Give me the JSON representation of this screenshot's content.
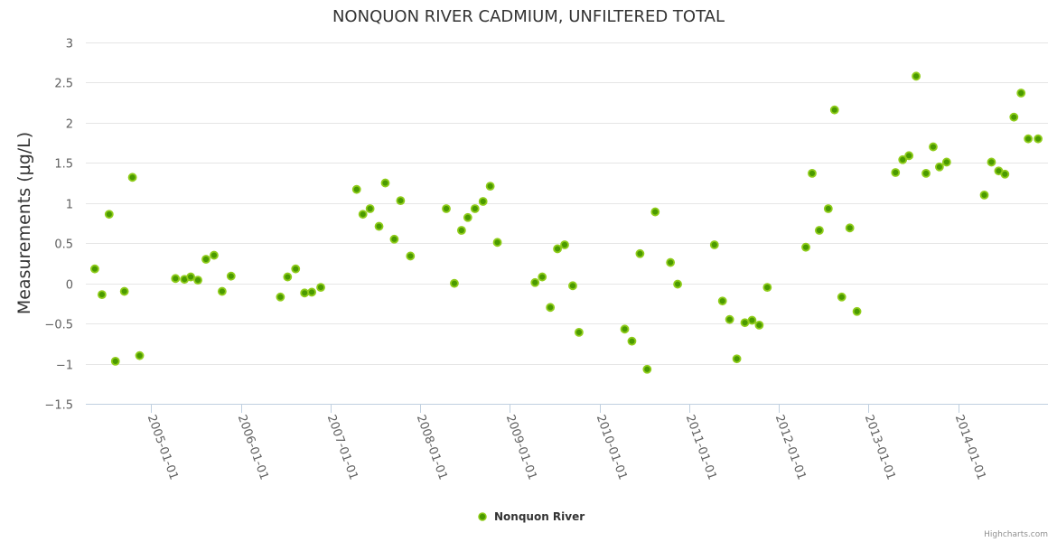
{
  "chart_data": {
    "type": "scatter",
    "title": "NONQUON RIVER CADMIUM, UNFILTERED TOTAL",
    "xlabel": "",
    "ylabel": "Measurements (µg/L)",
    "ylim": [
      -1.5,
      3
    ],
    "yticks": [
      3,
      2.5,
      2,
      1.5,
      1,
      0.5,
      0,
      -0.5,
      -1,
      -1.5
    ],
    "ytick_labels": [
      "3",
      "2.5",
      "2",
      "1.5",
      "1",
      "0.5",
      "0",
      "−0.5",
      "−1",
      "−1.5"
    ],
    "xlim": [
      2004.27,
      2015.0
    ],
    "x_units": "decimal year",
    "xticks": [
      2005,
      2006,
      2007,
      2008,
      2009,
      2010,
      2011,
      2012,
      2013,
      2014
    ],
    "xtick_labels": [
      "2005-01-01",
      "2006-01-01",
      "2007-01-01",
      "2008-01-01",
      "2009-01-01",
      "2010-01-01",
      "2011-01-01",
      "2012-01-01",
      "2013-01-01",
      "2014-01-01"
    ],
    "grid": true,
    "legend_position": "bottom-center",
    "credit": "Highcharts.com",
    "series": [
      {
        "name": "Nonquon River",
        "color": "#7cb700",
        "x": [
          2004.37,
          2004.45,
          2004.53,
          2004.6,
          2004.7,
          2004.79,
          2004.87,
          2005.27,
          2005.37,
          2005.44,
          2005.52,
          2005.61,
          2005.7,
          2005.79,
          2005.89,
          2006.44,
          2006.52,
          2006.61,
          2006.71,
          2006.79,
          2006.89,
          2007.29,
          2007.36,
          2007.44,
          2007.54,
          2007.61,
          2007.71,
          2007.78,
          2007.89,
          2008.29,
          2008.38,
          2008.46,
          2008.53,
          2008.61,
          2008.7,
          2008.78,
          2008.86,
          2009.28,
          2009.36,
          2009.45,
          2009.53,
          2009.61,
          2009.7,
          2009.77,
          2010.28,
          2010.36,
          2010.45,
          2010.53,
          2010.62,
          2010.79,
          2010.87,
          2011.28,
          2011.37,
          2011.45,
          2011.53,
          2011.62,
          2011.7,
          2011.78,
          2011.87,
          2012.3,
          2012.37,
          2012.45,
          2012.55,
          2012.62,
          2012.7,
          2012.79,
          2012.87,
          2013.3,
          2013.38,
          2013.45,
          2013.53,
          2013.64,
          2013.72,
          2013.79,
          2013.87,
          2014.29,
          2014.37,
          2014.45,
          2014.52,
          2014.62,
          2014.7,
          2014.78,
          2014.89
        ],
        "y": [
          0.18,
          -0.14,
          0.86,
          -0.97,
          -0.1,
          1.32,
          -0.9,
          0.06,
          0.05,
          0.08,
          0.04,
          0.3,
          0.35,
          -0.1,
          0.09,
          -0.17,
          0.08,
          0.18,
          -0.12,
          -0.11,
          -0.05,
          1.17,
          0.86,
          0.93,
          0.71,
          1.25,
          0.55,
          1.03,
          0.34,
          0.93,
          0.0,
          0.66,
          0.82,
          0.93,
          1.02,
          1.21,
          0.51,
          0.01,
          0.08,
          -0.3,
          0.43,
          0.48,
          -0.03,
          -0.61,
          -0.57,
          -0.72,
          0.37,
          -1.07,
          0.89,
          0.26,
          -0.01,
          0.48,
          -0.22,
          -0.45,
          -0.94,
          -0.49,
          -0.46,
          -0.52,
          -0.05,
          0.45,
          1.37,
          0.66,
          0.93,
          2.16,
          -0.17,
          0.69,
          -0.35,
          1.38,
          1.54,
          1.59,
          2.58,
          1.37,
          1.7,
          1.45,
          1.51,
          1.1,
          1.51,
          1.4,
          1.36,
          2.07,
          2.37,
          1.8,
          1.8
        ]
      }
    ]
  }
}
